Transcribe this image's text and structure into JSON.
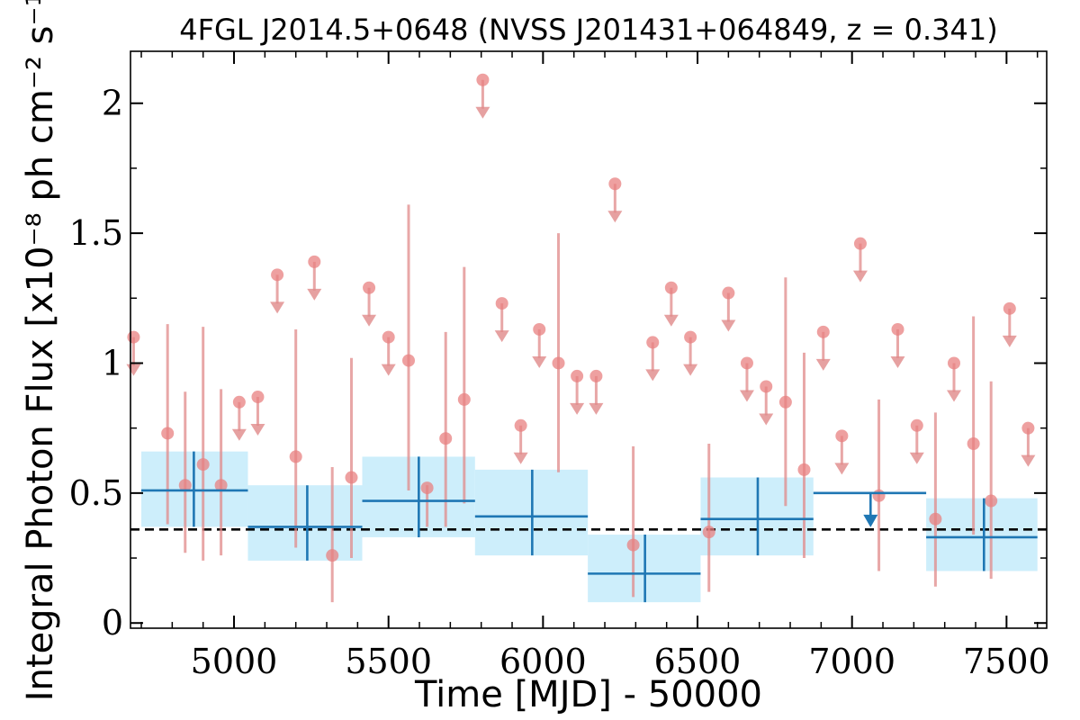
{
  "chart_data": {
    "type": "scatter",
    "title": "4FGL J2014.5+0648 (NVSS J201431+064849, z = 0.341)",
    "xlabel": "Time [MJD] - 50000",
    "ylabel": "Integral Photon Flux [x10⁻⁸ ph cm⁻² s⁻¹]",
    "xlim": [
      4665,
      7630
    ],
    "ylim": [
      -0.02,
      2.2
    ],
    "xticks": [
      5000,
      5500,
      6000,
      6500,
      7000,
      7500
    ],
    "xtick_labels": [
      "5000",
      "5500",
      "6000",
      "6500",
      "7000",
      "7500"
    ],
    "yticks": [
      0,
      0.5,
      1,
      1.5,
      2
    ],
    "ytick_labels": [
      "0",
      "0.5",
      "1",
      "1.5",
      "2"
    ],
    "grid": false,
    "colors": {
      "bin_point": "#e88080",
      "bin_errorbar": "#e08a8a",
      "long_bin": "#1f77b4",
      "band": "#cdeefb",
      "average_line": "#000000"
    },
    "short_bins": {
      "detections": [
        {
          "x": 4785,
          "y": 0.73,
          "ylo": 0.38,
          "yhi": 1.15
        },
        {
          "x": 4842,
          "y": 0.53,
          "ylo": 0.27,
          "yhi": 0.89
        },
        {
          "x": 4900,
          "y": 0.61,
          "ylo": 0.24,
          "yhi": 1.14
        },
        {
          "x": 4958,
          "y": 0.53,
          "ylo": 0.26,
          "yhi": 0.9
        },
        {
          "x": 5200,
          "y": 0.64,
          "ylo": 0.29,
          "yhi": 1.13
        },
        {
          "x": 5318,
          "y": 0.26,
          "ylo": 0.08,
          "yhi": 0.6
        },
        {
          "x": 5380,
          "y": 0.56,
          "ylo": 0.25,
          "yhi": 1.02
        },
        {
          "x": 5565,
          "y": 1.01,
          "ylo": 0.51,
          "yhi": 1.61
        },
        {
          "x": 5625,
          "y": 0.52,
          "ylo": 0.37,
          "yhi": 0.53
        },
        {
          "x": 5685,
          "y": 0.71,
          "ylo": 0.37,
          "yhi": 1.12
        },
        {
          "x": 5745,
          "y": 0.86,
          "ylo": 0.46,
          "yhi": 1.37
        },
        {
          "x": 6050,
          "y": 1.0,
          "ylo": 0.58,
          "yhi": 1.5
        },
        {
          "x": 6292,
          "y": 0.3,
          "ylo": 0.1,
          "yhi": 0.68
        },
        {
          "x": 6537,
          "y": 0.35,
          "ylo": 0.12,
          "yhi": 0.69
        },
        {
          "x": 6785,
          "y": 0.85,
          "ylo": 0.45,
          "yhi": 1.33
        },
        {
          "x": 6845,
          "y": 0.59,
          "ylo": 0.25,
          "yhi": 1.04
        },
        {
          "x": 7087,
          "y": 0.49,
          "ylo": 0.2,
          "yhi": 0.86
        },
        {
          "x": 7270,
          "y": 0.4,
          "ylo": 0.14,
          "yhi": 0.81
        },
        {
          "x": 7393,
          "y": 0.69,
          "ylo": 0.34,
          "yhi": 1.18
        },
        {
          "x": 7450,
          "y": 0.47,
          "ylo": 0.17,
          "yhi": 0.93
        }
      ],
      "upper_limits": [
        {
          "x": 4675,
          "y": 1.1
        },
        {
          "x": 5017,
          "y": 0.85
        },
        {
          "x": 5077,
          "y": 0.87
        },
        {
          "x": 5140,
          "y": 1.34
        },
        {
          "x": 5260,
          "y": 1.39
        },
        {
          "x": 5437,
          "y": 1.29
        },
        {
          "x": 5500,
          "y": 1.1
        },
        {
          "x": 5805,
          "y": 2.09
        },
        {
          "x": 5867,
          "y": 1.23
        },
        {
          "x": 5928,
          "y": 0.76
        },
        {
          "x": 5988,
          "y": 1.13
        },
        {
          "x": 6110,
          "y": 0.95
        },
        {
          "x": 6172,
          "y": 0.95
        },
        {
          "x": 6233,
          "y": 1.69
        },
        {
          "x": 6355,
          "y": 1.08
        },
        {
          "x": 6415,
          "y": 1.29
        },
        {
          "x": 6477,
          "y": 1.1
        },
        {
          "x": 6600,
          "y": 1.27
        },
        {
          "x": 6660,
          "y": 1.0
        },
        {
          "x": 6722,
          "y": 0.91
        },
        {
          "x": 6907,
          "y": 1.12
        },
        {
          "x": 6967,
          "y": 0.72
        },
        {
          "x": 7027,
          "y": 1.46
        },
        {
          "x": 7148,
          "y": 1.13
        },
        {
          "x": 7210,
          "y": 0.76
        },
        {
          "x": 7330,
          "y": 1.0
        },
        {
          "x": 7510,
          "y": 1.21
        },
        {
          "x": 7570,
          "y": 0.75
        }
      ]
    },
    "long_bins": {
      "detections": [
        {
          "x": 4870,
          "x0": 4700,
          "x1": 5045,
          "y": 0.51,
          "ylo": 0.37,
          "yhi": 0.66
        },
        {
          "x": 5237,
          "x0": 5045,
          "x1": 5415,
          "y": 0.37,
          "ylo": 0.24,
          "yhi": 0.53
        },
        {
          "x": 5598,
          "x0": 5415,
          "x1": 5780,
          "y": 0.47,
          "ylo": 0.33,
          "yhi": 0.64
        },
        {
          "x": 5965,
          "x0": 5780,
          "x1": 6145,
          "y": 0.41,
          "ylo": 0.26,
          "yhi": 0.59
        },
        {
          "x": 6330,
          "x0": 6145,
          "x1": 6510,
          "y": 0.19,
          "ylo": 0.08,
          "yhi": 0.34
        },
        {
          "x": 6695,
          "x0": 6510,
          "x1": 6875,
          "y": 0.4,
          "ylo": 0.26,
          "yhi": 0.56
        },
        {
          "x": 7427,
          "x0": 7240,
          "x1": 7600,
          "y": 0.33,
          "ylo": 0.2,
          "yhi": 0.48
        }
      ],
      "upper_limits": [
        {
          "x": 7060,
          "x0": 6875,
          "x1": 7240,
          "y": 0.5
        }
      ]
    },
    "average_flux": 0.36
  }
}
